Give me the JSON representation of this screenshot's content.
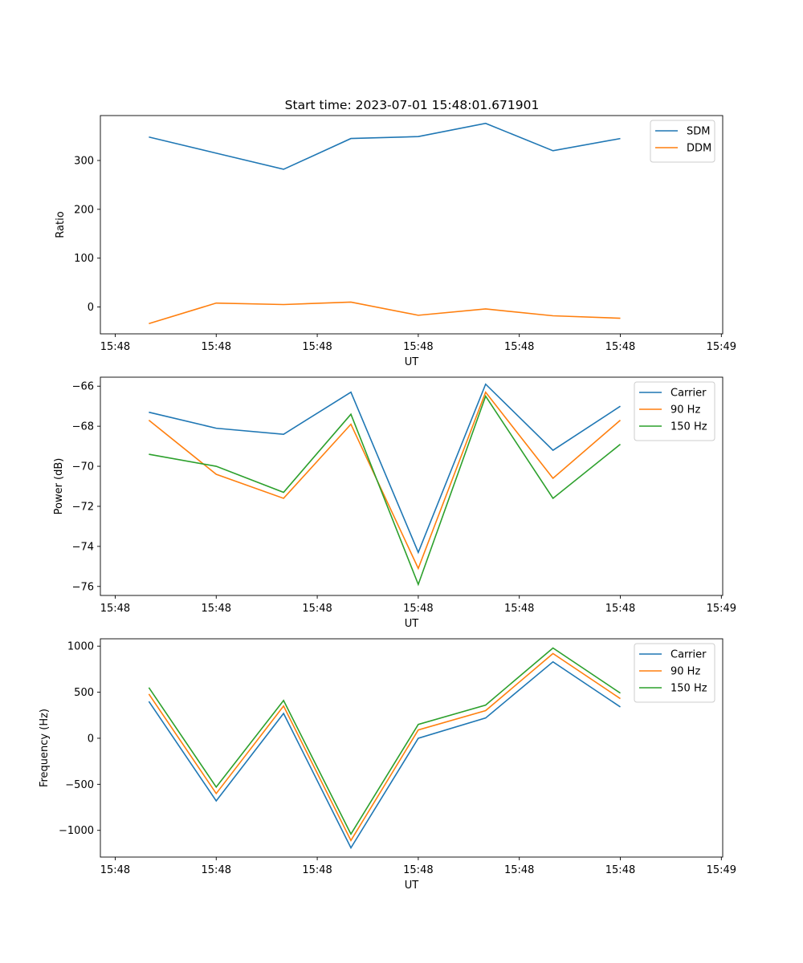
{
  "figure": {
    "title": "Start time: 2023-07-01 15:48:01.671901"
  },
  "colors": {
    "blue": "#1f77b4",
    "orange": "#ff7f0e",
    "green": "#2ca02c"
  },
  "chart_data": [
    {
      "type": "line",
      "xlabel": "UT",
      "ylabel": "Ratio",
      "ylim": [
        -55,
        392
      ],
      "xlim": [
        -0.72,
        8.52
      ],
      "x": [
        0,
        1,
        2,
        3,
        4,
        5,
        6,
        7
      ],
      "yticks": [
        0,
        100,
        200,
        300
      ],
      "ytick_labels": [
        "0",
        "100",
        "200",
        "300"
      ],
      "xticks": [
        -0.5,
        1,
        2.5,
        4,
        5.5,
        7,
        8.5
      ],
      "xtick_labels": [
        "15:48",
        "15:48",
        "15:48",
        "15:48",
        "15:48",
        "15:48",
        "15:49"
      ],
      "legend": "top-right",
      "series": [
        {
          "name": "SDM",
          "color": "#1f77b4",
          "values": [
            348,
            315,
            282,
            345,
            349,
            376,
            320,
            345
          ]
        },
        {
          "name": "DDM",
          "color": "#ff7f0e",
          "values": [
            -34,
            8,
            5,
            10,
            -17,
            -4,
            -18,
            -23
          ]
        }
      ]
    },
    {
      "type": "line",
      "xlabel": "UT",
      "ylabel": "Power (dB)",
      "ylim": [
        -76.45,
        -65.55
      ],
      "xlim": [
        -0.72,
        8.52
      ],
      "x": [
        0,
        1,
        2,
        3,
        4,
        5,
        6,
        7
      ],
      "yticks": [
        -76,
        -74,
        -72,
        -70,
        -68,
        -66
      ],
      "ytick_labels": [
        "−76",
        "−74",
        "−72",
        "−70",
        "−68",
        "−66"
      ],
      "xticks": [
        -0.5,
        1,
        2.5,
        4,
        5.5,
        7,
        8.5
      ],
      "xtick_labels": [
        "15:48",
        "15:48",
        "15:48",
        "15:48",
        "15:48",
        "15:48",
        "15:49"
      ],
      "legend": "top-right",
      "series": [
        {
          "name": "Carrier",
          "color": "#1f77b4",
          "values": [
            -67.3,
            -68.1,
            -68.4,
            -66.3,
            -74.3,
            -65.9,
            -69.2,
            -67.0
          ]
        },
        {
          "name": "90 Hz",
          "color": "#ff7f0e",
          "values": [
            -67.7,
            -70.4,
            -71.6,
            -67.9,
            -75.1,
            -66.3,
            -70.6,
            -67.7
          ]
        },
        {
          "name": "150 Hz",
          "color": "#2ca02c",
          "values": [
            -69.4,
            -70.0,
            -71.3,
            -67.4,
            -75.9,
            -66.5,
            -71.6,
            -68.9
          ]
        }
      ]
    },
    {
      "type": "line",
      "xlabel": "UT",
      "ylabel": "Frequency (Hz)",
      "ylim": [
        -1290,
        1080
      ],
      "xlim": [
        -0.72,
        8.52
      ],
      "x": [
        0,
        1,
        2,
        3,
        4,
        5,
        6,
        7
      ],
      "yticks": [
        -1000,
        -500,
        0,
        500,
        1000
      ],
      "ytick_labels": [
        "−1000",
        "−500",
        "0",
        "500",
        "1000"
      ],
      "xticks": [
        -0.5,
        1,
        2.5,
        4,
        5.5,
        7,
        8.5
      ],
      "xtick_labels": [
        "15:48",
        "15:48",
        "15:48",
        "15:48",
        "15:48",
        "15:48",
        "15:49"
      ],
      "legend": "top-right",
      "series": [
        {
          "name": "Carrier",
          "color": "#1f77b4",
          "values": [
            400,
            -680,
            270,
            -1190,
            0,
            220,
            830,
            340
          ]
        },
        {
          "name": "90 Hz",
          "color": "#ff7f0e",
          "values": [
            480,
            -600,
            350,
            -1110,
            90,
            300,
            920,
            430
          ]
        },
        {
          "name": "150 Hz",
          "color": "#2ca02c",
          "values": [
            550,
            -530,
            410,
            -1040,
            150,
            360,
            980,
            490
          ]
        }
      ]
    }
  ]
}
